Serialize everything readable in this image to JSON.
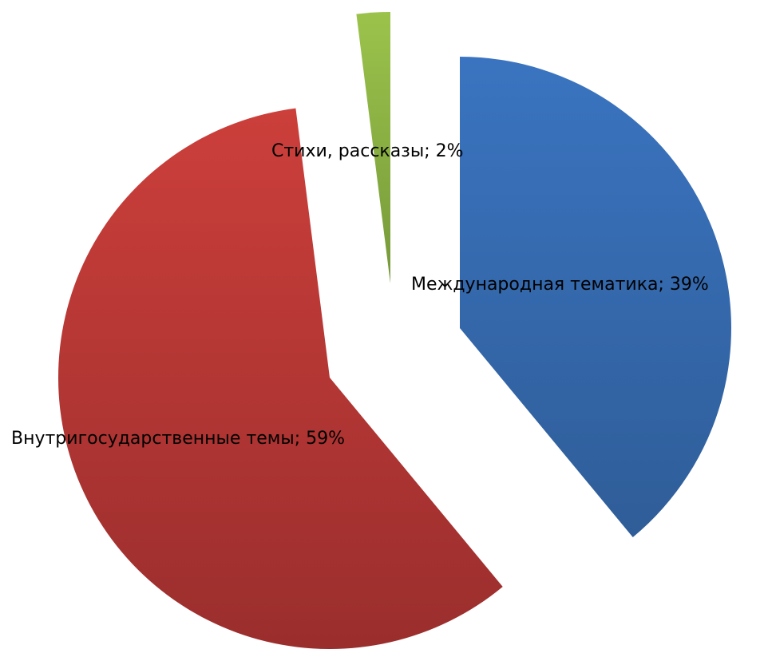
{
  "chart_data": {
    "type": "pie",
    "title": "",
    "slices": [
      {
        "name": "Международная тематика",
        "value": 39,
        "label": "Международная тематика; 39%",
        "color": "#3a74c0",
        "color_dark": "#2f5d98"
      },
      {
        "name": "Внутригосударственные темы",
        "value": 59,
        "label": "Внутригосударственные темы; 59%",
        "color": "#cc3f3b",
        "color_dark": "#9a2e2d"
      },
      {
        "name": "Стихи, рассказы",
        "value": 2,
        "label": "Стихи, рассказы; 2%",
        "color": "#9bc34b",
        "color_dark": "#76993a"
      }
    ],
    "start_angle_deg": 0,
    "direction": "clockwise",
    "exploded": true,
    "legend": "none"
  }
}
